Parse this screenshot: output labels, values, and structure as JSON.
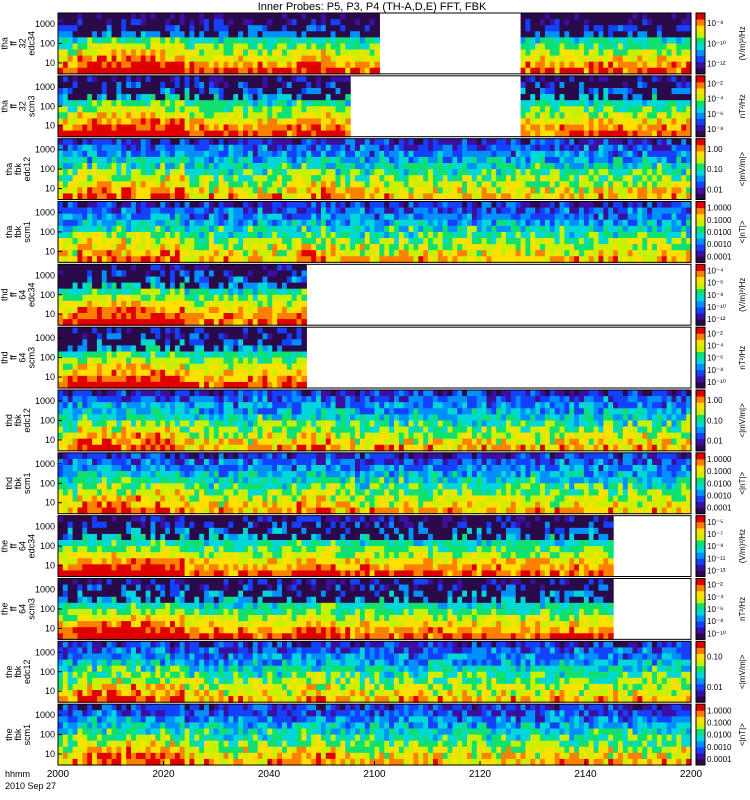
{
  "chart_data": {
    "type": "heatmap",
    "title": "Inner Probes: P5, P3, P4 (TH-A,D,E) FFT, FBK",
    "x_axis": {
      "units_label": "hhmm",
      "date_label": "2010 Sep 27",
      "range": [
        "2000",
        "2200"
      ],
      "ticks": [
        "2000",
        "2020",
        "2040",
        "2100",
        "2120",
        "2140",
        "2200"
      ]
    },
    "panels": [
      {
        "label": [
          "tha",
          "ff",
          "32",
          "edc34"
        ],
        "colorbar_label": "(V/m)²/Hz",
        "yticks": [
          "1000",
          "100",
          "10"
        ],
        "cbticks": [
          "10⁻⁸",
          "10⁻¹⁰",
          "10⁻¹²"
        ],
        "coverage": [
          [
            0,
            0.51
          ],
          [
            0.73,
            1.0
          ]
        ],
        "noisy": true
      },
      {
        "label": [
          "tha",
          "ff",
          "32",
          "scm3"
        ],
        "colorbar_label": "nT²/Hz",
        "yticks": [
          "1000",
          "100",
          "10"
        ],
        "cbticks": [
          "10⁻²",
          "10⁻⁴",
          "10⁻⁶",
          "10⁻⁸"
        ],
        "coverage": [
          [
            0,
            0.46
          ],
          [
            0.73,
            1.0
          ]
        ],
        "noisy": true
      },
      {
        "label": [
          "tha",
          "fbk",
          "edc12"
        ],
        "colorbar_label": "<|mV/m|>",
        "yticks": [
          "1000",
          "100",
          "10"
        ],
        "cbticks": [
          "1.00",
          "0.10",
          "0.01"
        ],
        "coverage": [
          [
            0,
            1.0
          ]
        ],
        "noisy": false
      },
      {
        "label": [
          "tha",
          "fbk",
          "scm1"
        ],
        "colorbar_label": "<|nT|>",
        "yticks": [
          "1000",
          "100",
          "10"
        ],
        "cbticks": [
          "1.0000",
          "0.1000",
          "0.0100",
          "0.0010",
          "0.0001"
        ],
        "coverage": [
          [
            0,
            1.0
          ]
        ],
        "noisy": false
      },
      {
        "label": [
          "thd",
          "ff",
          "64",
          "edc34"
        ],
        "colorbar_label": "(V/m)²/Hz",
        "yticks": [
          "1000",
          "100",
          "10"
        ],
        "cbticks": [
          "10⁻⁴",
          "10⁻⁶",
          "10⁻⁸",
          "10⁻¹⁰",
          "10⁻¹²"
        ],
        "coverage": [
          [
            0,
            0.39
          ]
        ],
        "noisy": true
      },
      {
        "label": [
          "thd",
          "ff",
          "64",
          "scm3"
        ],
        "colorbar_label": "nT²/Hz",
        "yticks": [
          "1000",
          "100",
          "10"
        ],
        "cbticks": [
          "10⁻²",
          "10⁻⁴",
          "10⁻⁶",
          "10⁻⁸",
          "10⁻¹⁰"
        ],
        "coverage": [
          [
            0,
            0.39
          ]
        ],
        "noisy": true
      },
      {
        "label": [
          "thd",
          "fbk",
          "edc12"
        ],
        "colorbar_label": "<|mV/m|>",
        "yticks": [
          "1000",
          "100",
          "10"
        ],
        "cbticks": [
          "1.00",
          "0.10",
          "0.01"
        ],
        "coverage": [
          [
            0,
            1.0
          ]
        ],
        "noisy": false
      },
      {
        "label": [
          "thd",
          "fbk",
          "scm1"
        ],
        "colorbar_label": "<|nT|>",
        "yticks": [
          "1000",
          "100",
          "10"
        ],
        "cbticks": [
          "1.0000",
          "0.1000",
          "0.0100",
          "0.0010",
          "0.0001"
        ],
        "coverage": [
          [
            0,
            1.0
          ]
        ],
        "noisy": false
      },
      {
        "label": [
          "the",
          "ff",
          "64",
          "edc34"
        ],
        "colorbar_label": "(V/m)²/Hz",
        "yticks": [
          "1000",
          "100",
          "10"
        ],
        "cbticks": [
          "10⁻⁵",
          "10⁻⁷",
          "10⁻⁹",
          "10⁻¹¹",
          "10⁻¹³"
        ],
        "coverage": [
          [
            0,
            0.88
          ]
        ],
        "noisy": true
      },
      {
        "label": [
          "the",
          "ff",
          "64",
          "scm3"
        ],
        "colorbar_label": "nT²/Hz",
        "yticks": [
          "1000",
          "100",
          "10"
        ],
        "cbticks": [
          "10⁻²",
          "10⁻⁴",
          "10⁻⁶",
          "10⁻⁸",
          "10⁻¹⁰"
        ],
        "coverage": [
          [
            0,
            0.88
          ]
        ],
        "noisy": true
      },
      {
        "label": [
          "the",
          "fbk",
          "edc12"
        ],
        "colorbar_label": "<|mV/m|>",
        "yticks": [
          "1000",
          "100",
          "10"
        ],
        "cbticks": [
          "0.10",
          "0.01"
        ],
        "coverage": [
          [
            0,
            1.0
          ]
        ],
        "noisy": false
      },
      {
        "label": [
          "the",
          "fbk",
          "scm1"
        ],
        "colorbar_label": "<|nT|>",
        "yticks": [
          "1000",
          "100",
          "10"
        ],
        "cbticks": [
          "1.0000",
          "0.1000",
          "0.0100",
          "0.0010",
          "0.0001"
        ],
        "coverage": [
          [
            0,
            1.0
          ]
        ],
        "noisy": false
      }
    ],
    "colormap": [
      "#2b0a4a",
      "#3b0fa0",
      "#1440ff",
      "#0090ff",
      "#00d8d8",
      "#10e070",
      "#c8f000",
      "#ffe000",
      "#ff8000",
      "#e00000"
    ]
  }
}
